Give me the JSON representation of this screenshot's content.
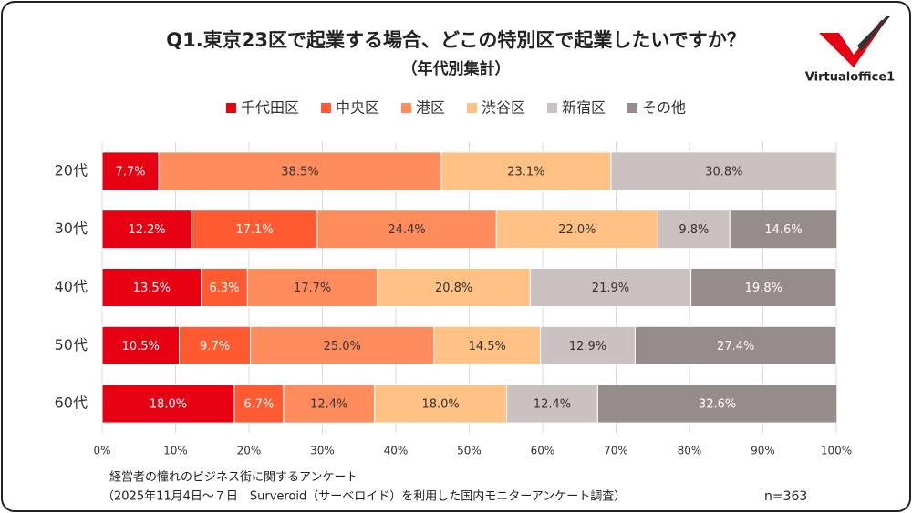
{
  "chart_data": {
    "type": "stacked_barh",
    "title": "Q1.東京23区で起業する場合、どこの特別区で起業したいですか？",
    "subtitle": "（年代別集計）",
    "logo": "Virtualoffice1",
    "notes": [
      "経営者の憧れのビジネス街に関するアンケート",
      "（2025年11月4日～７日　Surveroid（サーベロイド）を利用した国内モニターアンケート調査）"
    ],
    "sample_size": "n=363",
    "categories": [
      "20代",
      "30代",
      "40代",
      "50代",
      "60代"
    ],
    "series": [
      {
        "name": "千代田区",
        "color": "#e60012",
        "values": [
          7.7,
          12.2,
          13.5,
          10.5,
          18.0
        ],
        "value_labels": [
          "7.7%",
          "12.2%",
          "13.5%",
          "10.5%",
          "18.0%"
        ]
      },
      {
        "name": "中央区",
        "color": "#ff5a32",
        "values": [
          0,
          17.1,
          6.3,
          9.7,
          6.7
        ],
        "value_labels": [
          null,
          "17.1%",
          "6.3%",
          "9.7%",
          "6.7%"
        ]
      },
      {
        "name": "港区",
        "color": "#ff8c5c",
        "values": [
          38.5,
          24.4,
          17.7,
          25.0,
          12.4
        ],
        "value_labels": [
          "38.5%",
          "24.4%",
          "17.7%",
          "25.0%",
          "12.4%"
        ]
      },
      {
        "name": "渋谷区",
        "color": "#ffc184",
        "values": [
          23.1,
          22.0,
          20.8,
          14.5,
          18.0
        ],
        "value_labels": [
          "23.1%",
          "22.0%",
          "20.8%",
          "14.5%",
          "18.0%"
        ]
      },
      {
        "name": "新宿区",
        "color": "#cbc1c1",
        "values": [
          30.8,
          9.8,
          21.9,
          12.9,
          12.4
        ],
        "value_labels": [
          "30.8%",
          "9.8%",
          "21.9%",
          "12.9%",
          "12.4%"
        ]
      },
      {
        "name": "その他",
        "color": "#978c8c",
        "values": [
          0,
          14.6,
          19.8,
          27.4,
          32.6
        ],
        "value_labels": [
          null,
          "14.6%",
          "19.8%",
          "27.4%",
          "32.6%"
        ]
      }
    ],
    "xlim": [
      0,
      100
    ],
    "xticks": [
      {
        "value": 0,
        "label": "0%"
      },
      {
        "value": 10,
        "label": "10%"
      },
      {
        "value": 20,
        "label": "20%"
      },
      {
        "value": 30,
        "label": "30%"
      },
      {
        "value": 40,
        "label": "40%"
      },
      {
        "value": 50,
        "label": "50%"
      },
      {
        "value": 60,
        "label": "60%"
      },
      {
        "value": 70,
        "label": "70%"
      },
      {
        "value": 80,
        "label": "80%"
      },
      {
        "value": 90,
        "label": "90%"
      },
      {
        "value": 100,
        "label": "100%"
      }
    ],
    "grid": true,
    "legend": "top"
  }
}
